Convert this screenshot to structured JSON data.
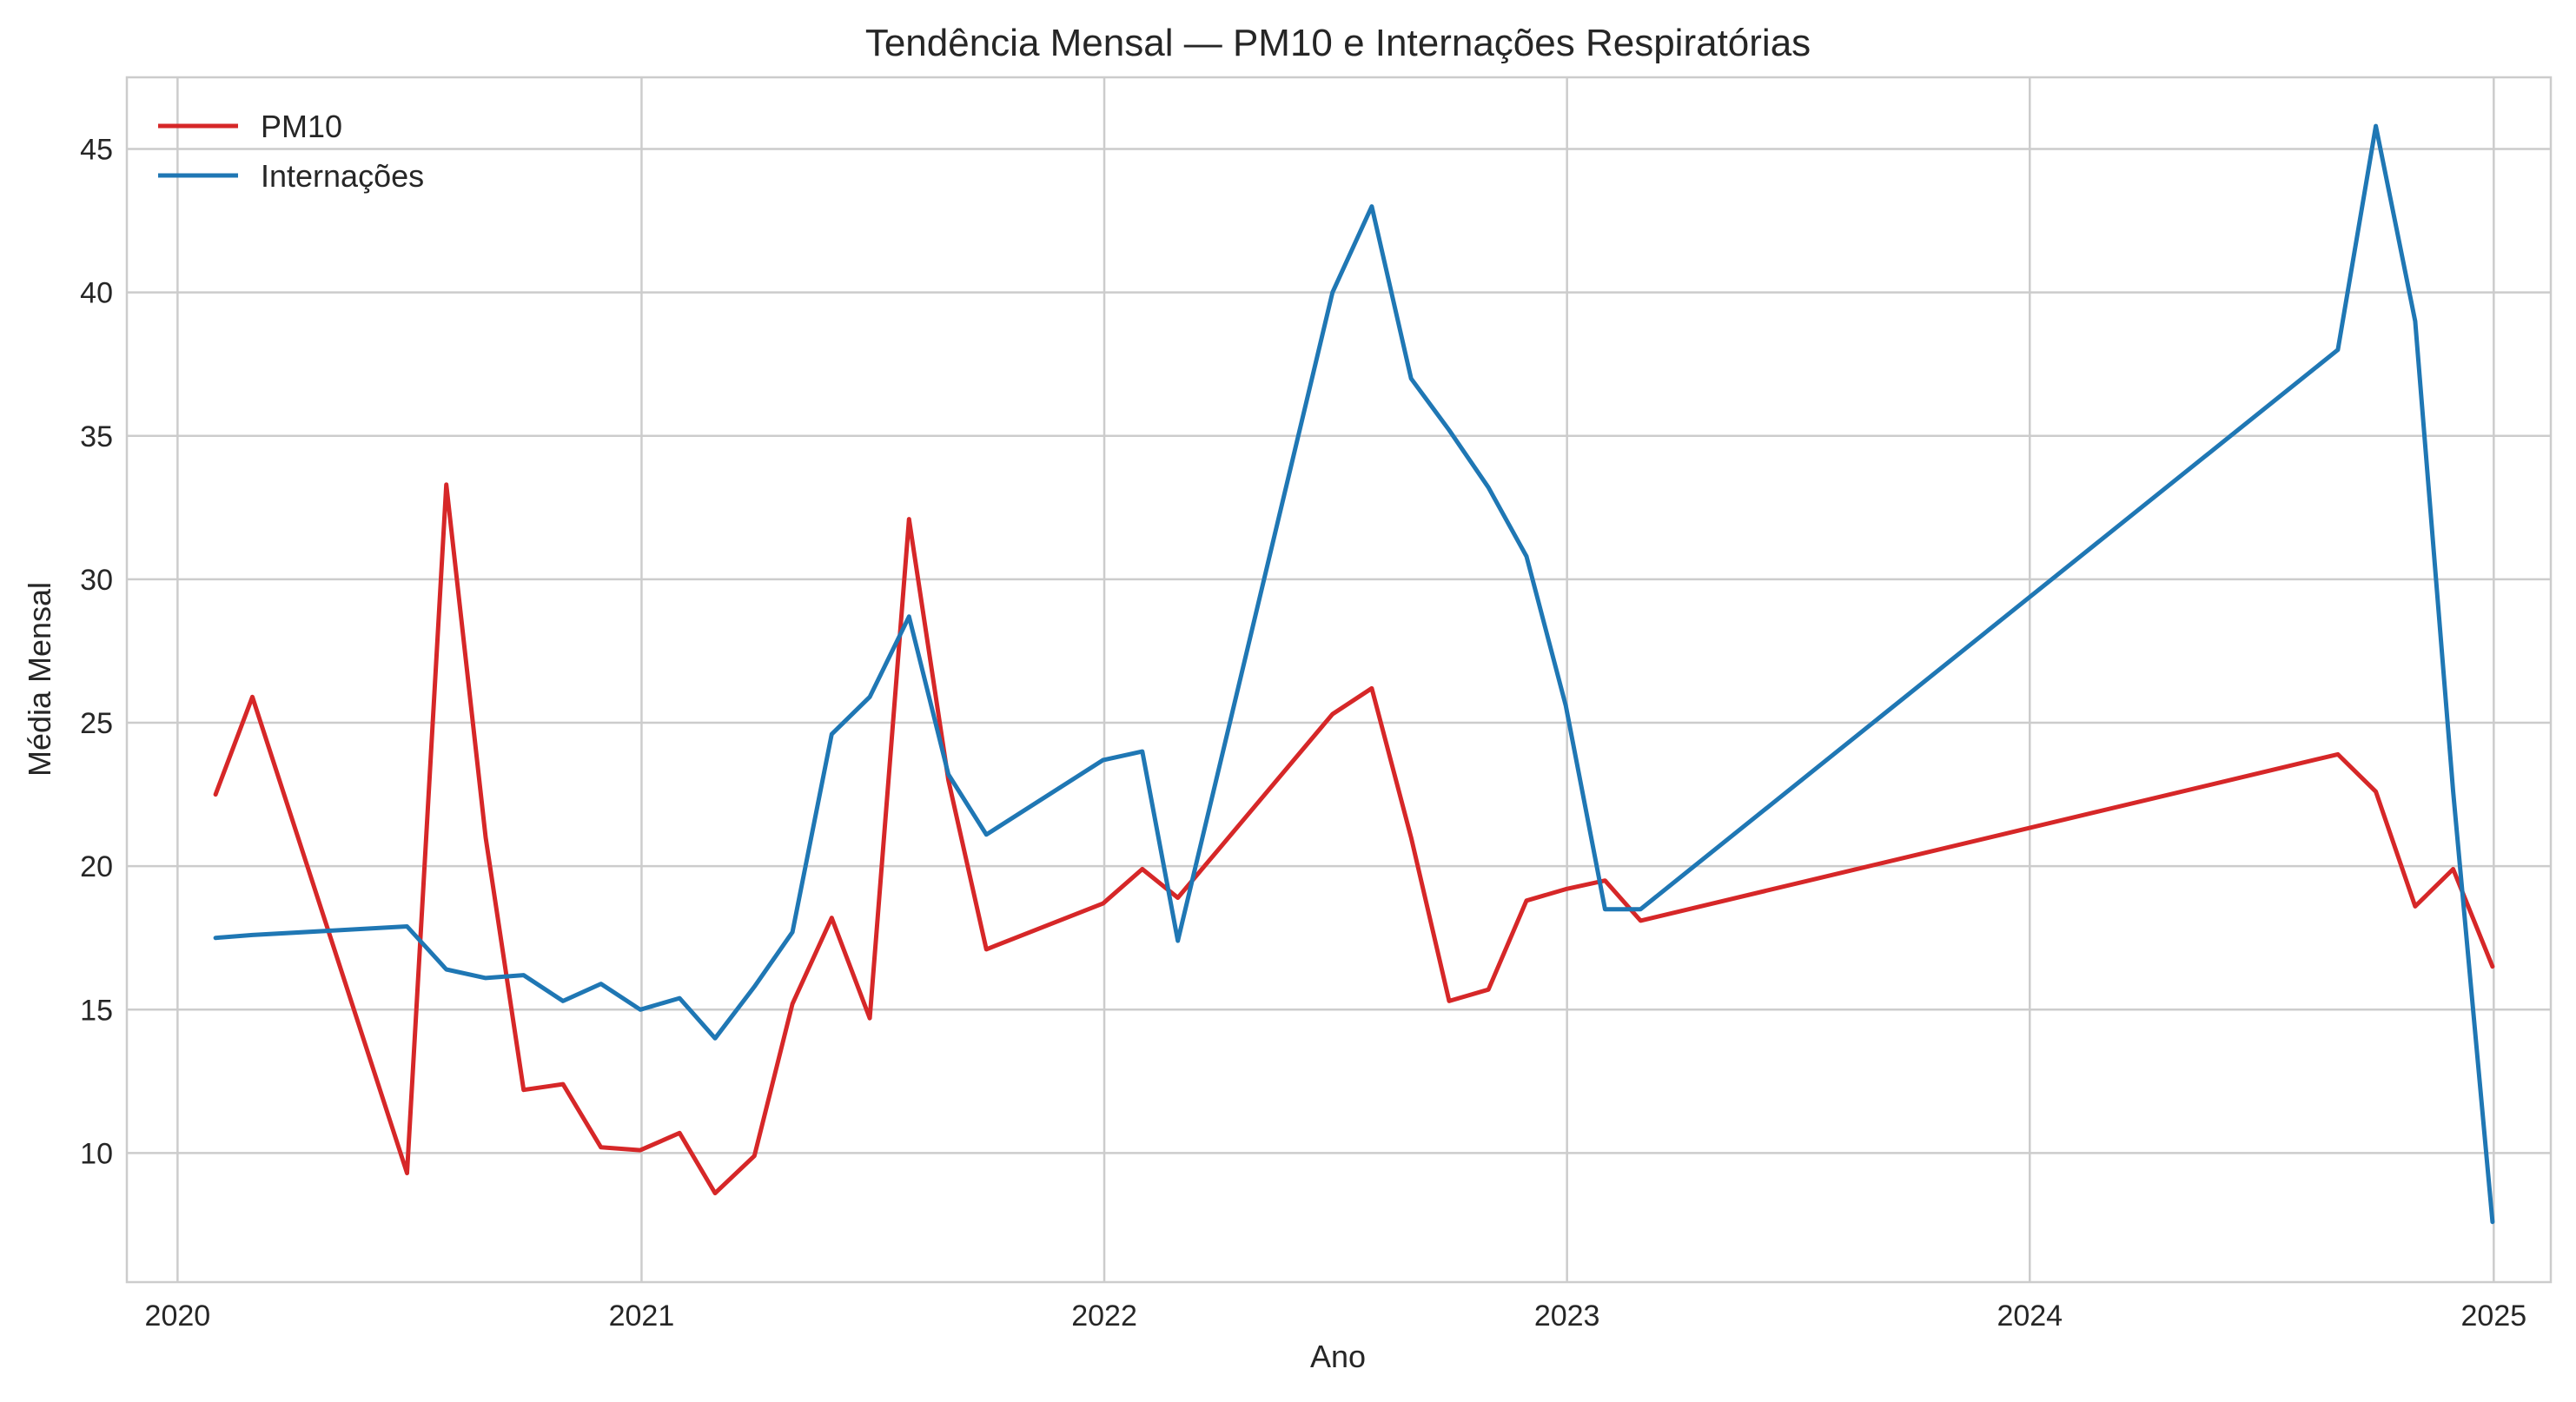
{
  "chart_data": {
    "type": "line",
    "title": "Tendência Mensal — PM10 e Internações Respiratórias",
    "xlabel": "Ano",
    "ylabel": "Média Mensal",
    "xlim": [
      "2019-11-22",
      "2025-02-15"
    ],
    "ylim": [
      5.5,
      47.5
    ],
    "x_ticks": [
      "2020-01-01",
      "2021-01-01",
      "2022-01-01",
      "2023-01-01",
      "2024-01-01",
      "2025-01-01"
    ],
    "x_tick_labels": [
      "2020",
      "2021",
      "2022",
      "2023",
      "2024",
      "2025"
    ],
    "y_ticks": [
      10,
      15,
      20,
      25,
      30,
      35,
      40,
      45
    ],
    "grid": true,
    "legend": "top-left",
    "series": [
      {
        "name": "PM10",
        "color": "#d62728",
        "points": [
          [
            "2020-01-31",
            22.5
          ],
          [
            "2020-02-29",
            25.9
          ],
          [
            "2020-06-30",
            9.3
          ],
          [
            "2020-07-31",
            33.3
          ],
          [
            "2020-08-31",
            21.0
          ],
          [
            "2020-09-30",
            12.2
          ],
          [
            "2020-10-31",
            12.4
          ],
          [
            "2020-11-30",
            10.2
          ],
          [
            "2020-12-31",
            10.1
          ],
          [
            "2021-01-31",
            10.7
          ],
          [
            "2021-02-28",
            8.6
          ],
          [
            "2021-03-31",
            9.9
          ],
          [
            "2021-04-30",
            15.2
          ],
          [
            "2021-05-31",
            18.2
          ],
          [
            "2021-06-30",
            14.7
          ],
          [
            "2021-07-31",
            32.1
          ],
          [
            "2021-08-31",
            23.0
          ],
          [
            "2021-09-30",
            17.1
          ],
          [
            "2021-12-31",
            18.7
          ],
          [
            "2022-01-31",
            19.9
          ],
          [
            "2022-02-28",
            18.9
          ],
          [
            "2022-06-30",
            25.3
          ],
          [
            "2022-07-31",
            26.2
          ],
          [
            "2022-08-31",
            21.0
          ],
          [
            "2022-09-30",
            15.3
          ],
          [
            "2022-10-31",
            15.7
          ],
          [
            "2022-11-30",
            18.8
          ],
          [
            "2022-12-31",
            19.2
          ],
          [
            "2023-01-31",
            19.5
          ],
          [
            "2023-02-28",
            18.1
          ],
          [
            "2024-08-31",
            23.9
          ],
          [
            "2024-09-30",
            22.6
          ],
          [
            "2024-10-31",
            18.6
          ],
          [
            "2024-11-30",
            19.9
          ],
          [
            "2024-12-31",
            16.5
          ]
        ]
      },
      {
        "name": "Internações",
        "color": "#1f77b4",
        "points": [
          [
            "2020-01-31",
            17.5
          ],
          [
            "2020-02-29",
            17.6
          ],
          [
            "2020-06-30",
            17.9
          ],
          [
            "2020-07-31",
            16.4
          ],
          [
            "2020-08-31",
            16.1
          ],
          [
            "2020-09-30",
            16.2
          ],
          [
            "2020-10-31",
            15.3
          ],
          [
            "2020-11-30",
            15.9
          ],
          [
            "2020-12-31",
            15.0
          ],
          [
            "2021-01-31",
            15.4
          ],
          [
            "2021-02-28",
            14.0
          ],
          [
            "2021-03-31",
            15.8
          ],
          [
            "2021-04-30",
            17.7
          ],
          [
            "2021-05-31",
            24.6
          ],
          [
            "2021-06-30",
            25.9
          ],
          [
            "2021-07-31",
            28.7
          ],
          [
            "2021-08-31",
            23.2
          ],
          [
            "2021-09-30",
            21.1
          ],
          [
            "2021-12-31",
            23.7
          ],
          [
            "2022-01-31",
            24.0
          ],
          [
            "2022-02-28",
            17.4
          ],
          [
            "2022-06-30",
            40.0
          ],
          [
            "2022-07-31",
            43.0
          ],
          [
            "2022-08-31",
            37.0
          ],
          [
            "2022-09-30",
            35.2
          ],
          [
            "2022-10-31",
            33.2
          ],
          [
            "2022-11-30",
            30.8
          ],
          [
            "2022-12-31",
            25.6
          ],
          [
            "2023-01-31",
            18.5
          ],
          [
            "2023-02-28",
            18.5
          ],
          [
            "2024-08-31",
            38.0
          ],
          [
            "2024-09-30",
            45.8
          ],
          [
            "2024-10-31",
            39.0
          ],
          [
            "2024-11-30",
            22.6
          ],
          [
            "2024-12-31",
            7.6
          ]
        ]
      }
    ]
  }
}
